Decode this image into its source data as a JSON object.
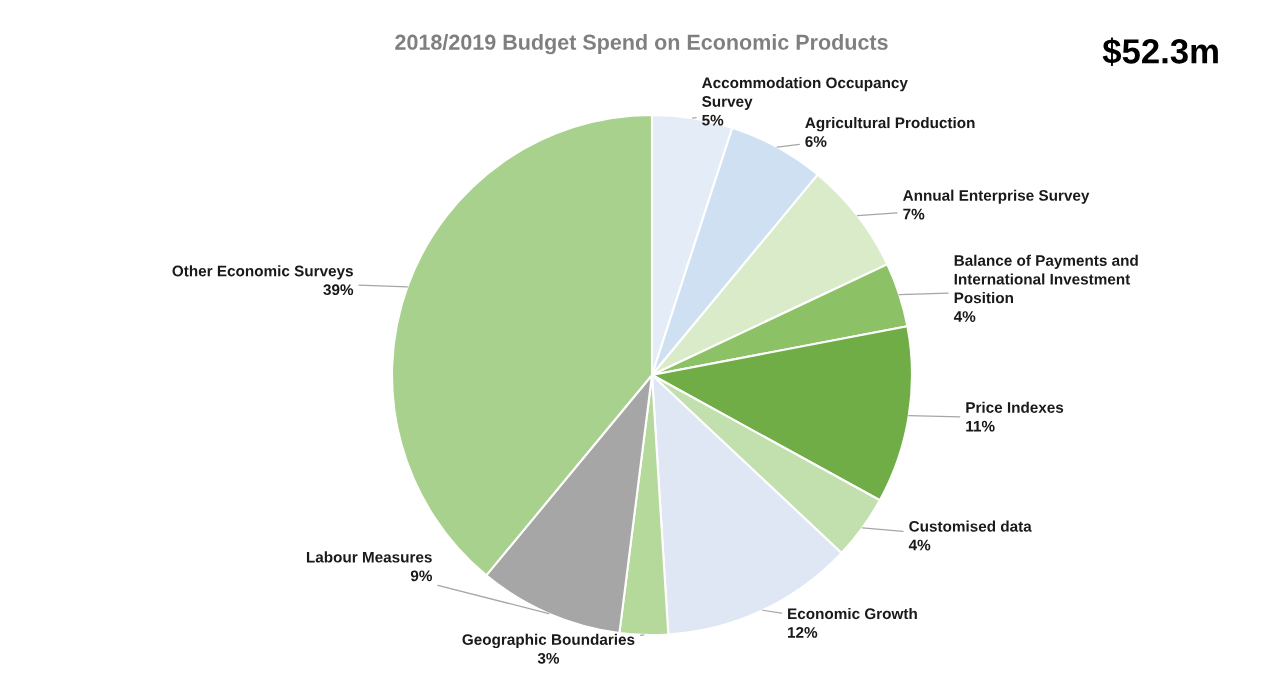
{
  "chart_data": {
    "type": "pie",
    "title": "2018/2019 Budget Spend on Economic Products",
    "annotations": [
      "$52.3m"
    ],
    "categories": [
      "Accommodation Occupancy\nSurvey",
      "Agricultural Production",
      "Annual Enterprise Survey",
      "Balance of Payments and\nInternational Investment\nPosition",
      "Price Indexes",
      "Customised data",
      "Economic Growth",
      "Geographic Boundaries",
      "Labour Measures",
      "Other Economic Surveys"
    ],
    "values": [
      5,
      6,
      7,
      4,
      11,
      4,
      12,
      3,
      9,
      39
    ],
    "value_labels": [
      "5%",
      "6%",
      "7%",
      "4%",
      "11%",
      "4%",
      "12%",
      "3%",
      "9%",
      "39%"
    ],
    "colors": [
      "#e4edf7",
      "#cfe0f2",
      "#d9ebc9",
      "#8cc265",
      "#70ad47",
      "#c2dfae",
      "#dfe7f5",
      "#b5d89b",
      "#a6a6a6",
      "#a9d18e"
    ],
    "legend": false
  }
}
